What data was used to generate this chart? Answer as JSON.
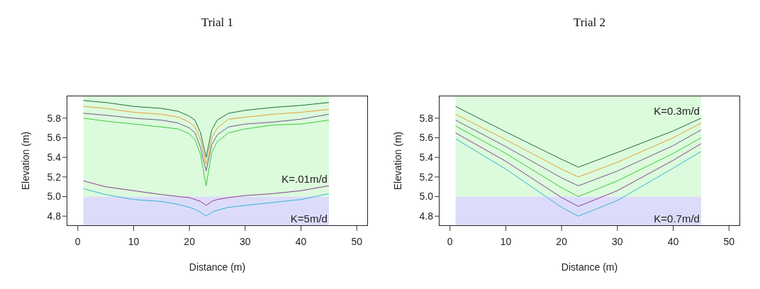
{
  "chart_data": [
    {
      "type": "line",
      "title": "Trial 1",
      "xlabel": "Distance (m)",
      "ylabel": "Elevation (m)",
      "x": [
        1,
        5,
        10,
        15,
        18,
        20,
        21,
        22,
        23,
        24,
        25,
        27,
        30,
        35,
        40,
        45
      ],
      "series": [
        {
          "color": "#1e6e3c",
          "values": [
            5.98,
            5.96,
            5.92,
            5.9,
            5.87,
            5.82,
            5.78,
            5.65,
            5.4,
            5.68,
            5.78,
            5.85,
            5.88,
            5.91,
            5.93,
            5.96
          ]
        },
        {
          "color": "#e6a032",
          "values": [
            5.92,
            5.9,
            5.86,
            5.84,
            5.81,
            5.76,
            5.71,
            5.58,
            5.33,
            5.6,
            5.7,
            5.79,
            5.81,
            5.84,
            5.86,
            5.89
          ]
        },
        {
          "color": "#6e5a8c",
          "values": [
            5.85,
            5.83,
            5.8,
            5.78,
            5.75,
            5.7,
            5.65,
            5.5,
            5.26,
            5.53,
            5.63,
            5.71,
            5.74,
            5.76,
            5.79,
            5.84
          ]
        },
        {
          "color": "#3cc83c",
          "values": [
            5.8,
            5.77,
            5.74,
            5.71,
            5.69,
            5.64,
            5.58,
            5.43,
            5.11,
            5.45,
            5.56,
            5.65,
            5.69,
            5.73,
            5.74,
            5.78
          ]
        },
        {
          "color": "#8c3c96",
          "values": [
            5.16,
            5.1,
            5.06,
            5.02,
            5.0,
            4.99,
            4.97,
            4.95,
            4.91,
            4.95,
            4.97,
            4.99,
            5.01,
            5.03,
            5.06,
            5.11
          ]
        },
        {
          "color": "#32b4d2",
          "values": [
            5.08,
            5.02,
            4.97,
            4.95,
            4.92,
            4.89,
            4.87,
            4.84,
            4.8,
            4.84,
            4.86,
            4.89,
            4.91,
            4.94,
            4.97,
            5.03
          ]
        }
      ],
      "xlim": [
        -2,
        52
      ],
      "xticks": [
        0,
        10,
        20,
        30,
        40,
        50
      ],
      "ylim": [
        4.7,
        6.03
      ],
      "yticks": [
        4.8,
        {
          "value": 5,
          "label": "5.0"
        },
        5.2,
        5.4,
        5.6,
        5.8
      ],
      "bands": [
        {
          "axis": "y",
          "from": 5,
          "to": 6.03,
          "color": "#dcfadc",
          "label": "K=.01m/d"
        },
        {
          "axis": "y",
          "from": 4.7,
          "to": 5,
          "color": "#dcdcfa",
          "label": "K=5m/d"
        }
      ]
    },
    {
      "type": "line",
      "title": "Trial 2",
      "xlabel": "Distance (m)",
      "ylabel": "Elevation (m)",
      "x": [
        1,
        10,
        20,
        23,
        30,
        40,
        45
      ],
      "series": [
        {
          "color": "#1e6e3c",
          "values": [
            5.92,
            5.66,
            5.38,
            5.3,
            5.45,
            5.67,
            5.8
          ]
        },
        {
          "color": "#e6a032",
          "values": [
            5.84,
            5.58,
            5.28,
            5.2,
            5.35,
            5.6,
            5.75
          ]
        },
        {
          "color": "#6e5a8c",
          "values": [
            5.78,
            5.51,
            5.19,
            5.11,
            5.26,
            5.52,
            5.68
          ]
        },
        {
          "color": "#3cc83c",
          "values": [
            5.72,
            5.44,
            5.09,
            5.0,
            5.16,
            5.44,
            5.6
          ]
        },
        {
          "color": "#8c3c96",
          "values": [
            5.65,
            5.36,
            4.99,
            4.9,
            5.06,
            5.37,
            5.54
          ]
        },
        {
          "color": "#32b4d2",
          "values": [
            5.59,
            5.28,
            4.89,
            4.8,
            4.96,
            5.29,
            5.46
          ]
        }
      ],
      "xlim": [
        -2,
        52
      ],
      "xticks": [
        0,
        10,
        20,
        30,
        40,
        50
      ],
      "ylim": [
        4.7,
        6.03
      ],
      "yticks": [
        4.8,
        {
          "value": 5,
          "label": "5.0"
        },
        5.2,
        5.4,
        5.6,
        5.8
      ],
      "bands": [
        {
          "axis": "y",
          "from": 5,
          "to": 6.03,
          "color": "#dcfadc",
          "label": "K=0.3m/d"
        },
        {
          "axis": "y",
          "from": 4.7,
          "to": 5,
          "color": "#dcdcfa",
          "label": "K=0.7m/d"
        }
      ]
    }
  ]
}
